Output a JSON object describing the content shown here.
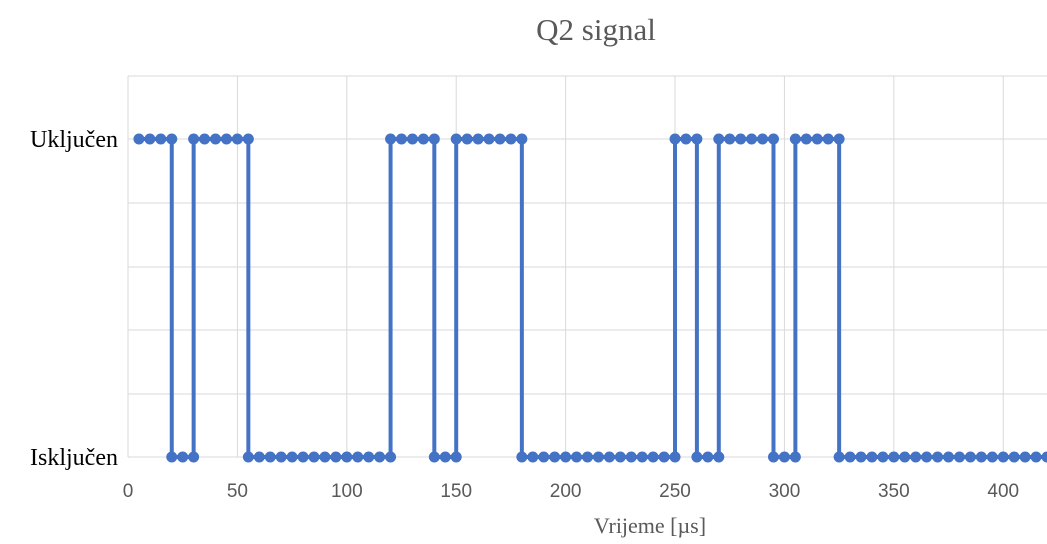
{
  "chart_data": {
    "type": "line",
    "title": "Q2 signal",
    "xlabel": "Vrijeme [µs]",
    "ylabel": "",
    "xlim": [
      0,
      420
    ],
    "x_ticks": [
      0,
      50,
      100,
      150,
      200,
      250,
      300,
      350,
      400
    ],
    "y_categories": [
      "Isključen",
      "Uključen"
    ],
    "grid": true,
    "legend": "none",
    "color": "#4472c4",
    "series": [
      {
        "points": [
          [
            5,
            1
          ],
          [
            10,
            1
          ],
          [
            15,
            1
          ],
          [
            20,
            1
          ],
          [
            20,
            0
          ],
          [
            25,
            0
          ],
          [
            30,
            0
          ],
          [
            30,
            1
          ],
          [
            35,
            1
          ],
          [
            40,
            1
          ],
          [
            45,
            1
          ],
          [
            50,
            1
          ],
          [
            55,
            1
          ],
          [
            55,
            0
          ],
          [
            60,
            0
          ],
          [
            65,
            0
          ],
          [
            70,
            0
          ],
          [
            75,
            0
          ],
          [
            80,
            0
          ],
          [
            85,
            0
          ],
          [
            90,
            0
          ],
          [
            95,
            0
          ],
          [
            100,
            0
          ],
          [
            105,
            0
          ],
          [
            110,
            0
          ],
          [
            115,
            0
          ],
          [
            120,
            0
          ],
          [
            120,
            1
          ],
          [
            125,
            1
          ],
          [
            130,
            1
          ],
          [
            135,
            1
          ],
          [
            140,
            1
          ],
          [
            140,
            0
          ],
          [
            145,
            0
          ],
          [
            150,
            0
          ],
          [
            150,
            1
          ],
          [
            155,
            1
          ],
          [
            160,
            1
          ],
          [
            165,
            1
          ],
          [
            170,
            1
          ],
          [
            175,
            1
          ],
          [
            180,
            1
          ],
          [
            180,
            0
          ],
          [
            185,
            0
          ],
          [
            190,
            0
          ],
          [
            195,
            0
          ],
          [
            200,
            0
          ],
          [
            205,
            0
          ],
          [
            210,
            0
          ],
          [
            215,
            0
          ],
          [
            220,
            0
          ],
          [
            225,
            0
          ],
          [
            230,
            0
          ],
          [
            235,
            0
          ],
          [
            240,
            0
          ],
          [
            245,
            0
          ],
          [
            250,
            0
          ],
          [
            250,
            1
          ],
          [
            255,
            1
          ],
          [
            260,
            1
          ],
          [
            260,
            0
          ],
          [
            265,
            0
          ],
          [
            270,
            0
          ],
          [
            270,
            1
          ],
          [
            275,
            1
          ],
          [
            280,
            1
          ],
          [
            285,
            1
          ],
          [
            290,
            1
          ],
          [
            295,
            1
          ],
          [
            295,
            0
          ],
          [
            300,
            0
          ],
          [
            305,
            0
          ],
          [
            305,
            1
          ],
          [
            310,
            1
          ],
          [
            315,
            1
          ],
          [
            320,
            1
          ],
          [
            325,
            1
          ],
          [
            325,
            0
          ],
          [
            330,
            0
          ],
          [
            335,
            0
          ],
          [
            340,
            0
          ],
          [
            345,
            0
          ],
          [
            350,
            0
          ],
          [
            355,
            0
          ],
          [
            360,
            0
          ],
          [
            365,
            0
          ],
          [
            370,
            0
          ],
          [
            375,
            0
          ],
          [
            380,
            0
          ],
          [
            385,
            0
          ],
          [
            390,
            0
          ],
          [
            395,
            0
          ],
          [
            400,
            0
          ],
          [
            405,
            0
          ],
          [
            410,
            0
          ],
          [
            415,
            0
          ],
          [
            420,
            0
          ]
        ]
      }
    ]
  }
}
